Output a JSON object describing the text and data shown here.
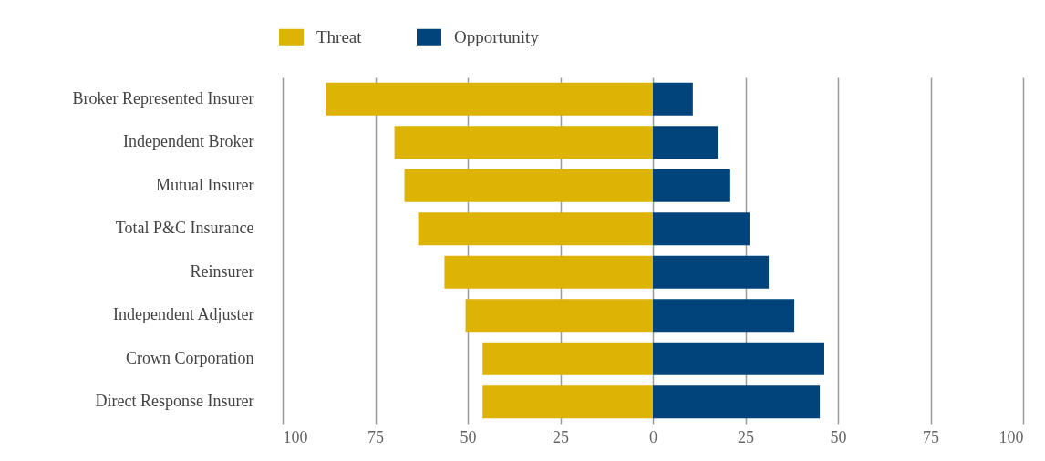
{
  "chart_data": {
    "type": "bar",
    "orientation": "horizontal",
    "categories": [
      "Broker Represented Insurer",
      "Independent Broker",
      "Mutual Insurer",
      "Total P&C Insurance",
      "Reinsurer",
      "Independent Adjuster",
      "Crown Corporation",
      "Direct Response Insurer"
    ],
    "series": [
      {
        "name": "Threat",
        "color": "#ddb306",
        "values": [
          -88.4,
          -69.8,
          -67.1,
          -63.4,
          -56.3,
          -50.6,
          -46.0,
          -46.0
        ]
      },
      {
        "name": "Opportunity",
        "color": "#00447b",
        "values": [
          10.8,
          17.5,
          20.9,
          26.1,
          31.3,
          38.2,
          46.3,
          45.1
        ]
      }
    ],
    "xlim": [
      -100,
      100
    ],
    "xticks": [
      {
        "value": -100,
        "label": "100"
      },
      {
        "value": -75,
        "label": "75"
      },
      {
        "value": -50,
        "label": "50"
      },
      {
        "value": -25,
        "label": "25"
      },
      0,
      25,
      50,
      75,
      100
    ],
    "grid": "x",
    "legend": "top",
    "stacked": true
  }
}
